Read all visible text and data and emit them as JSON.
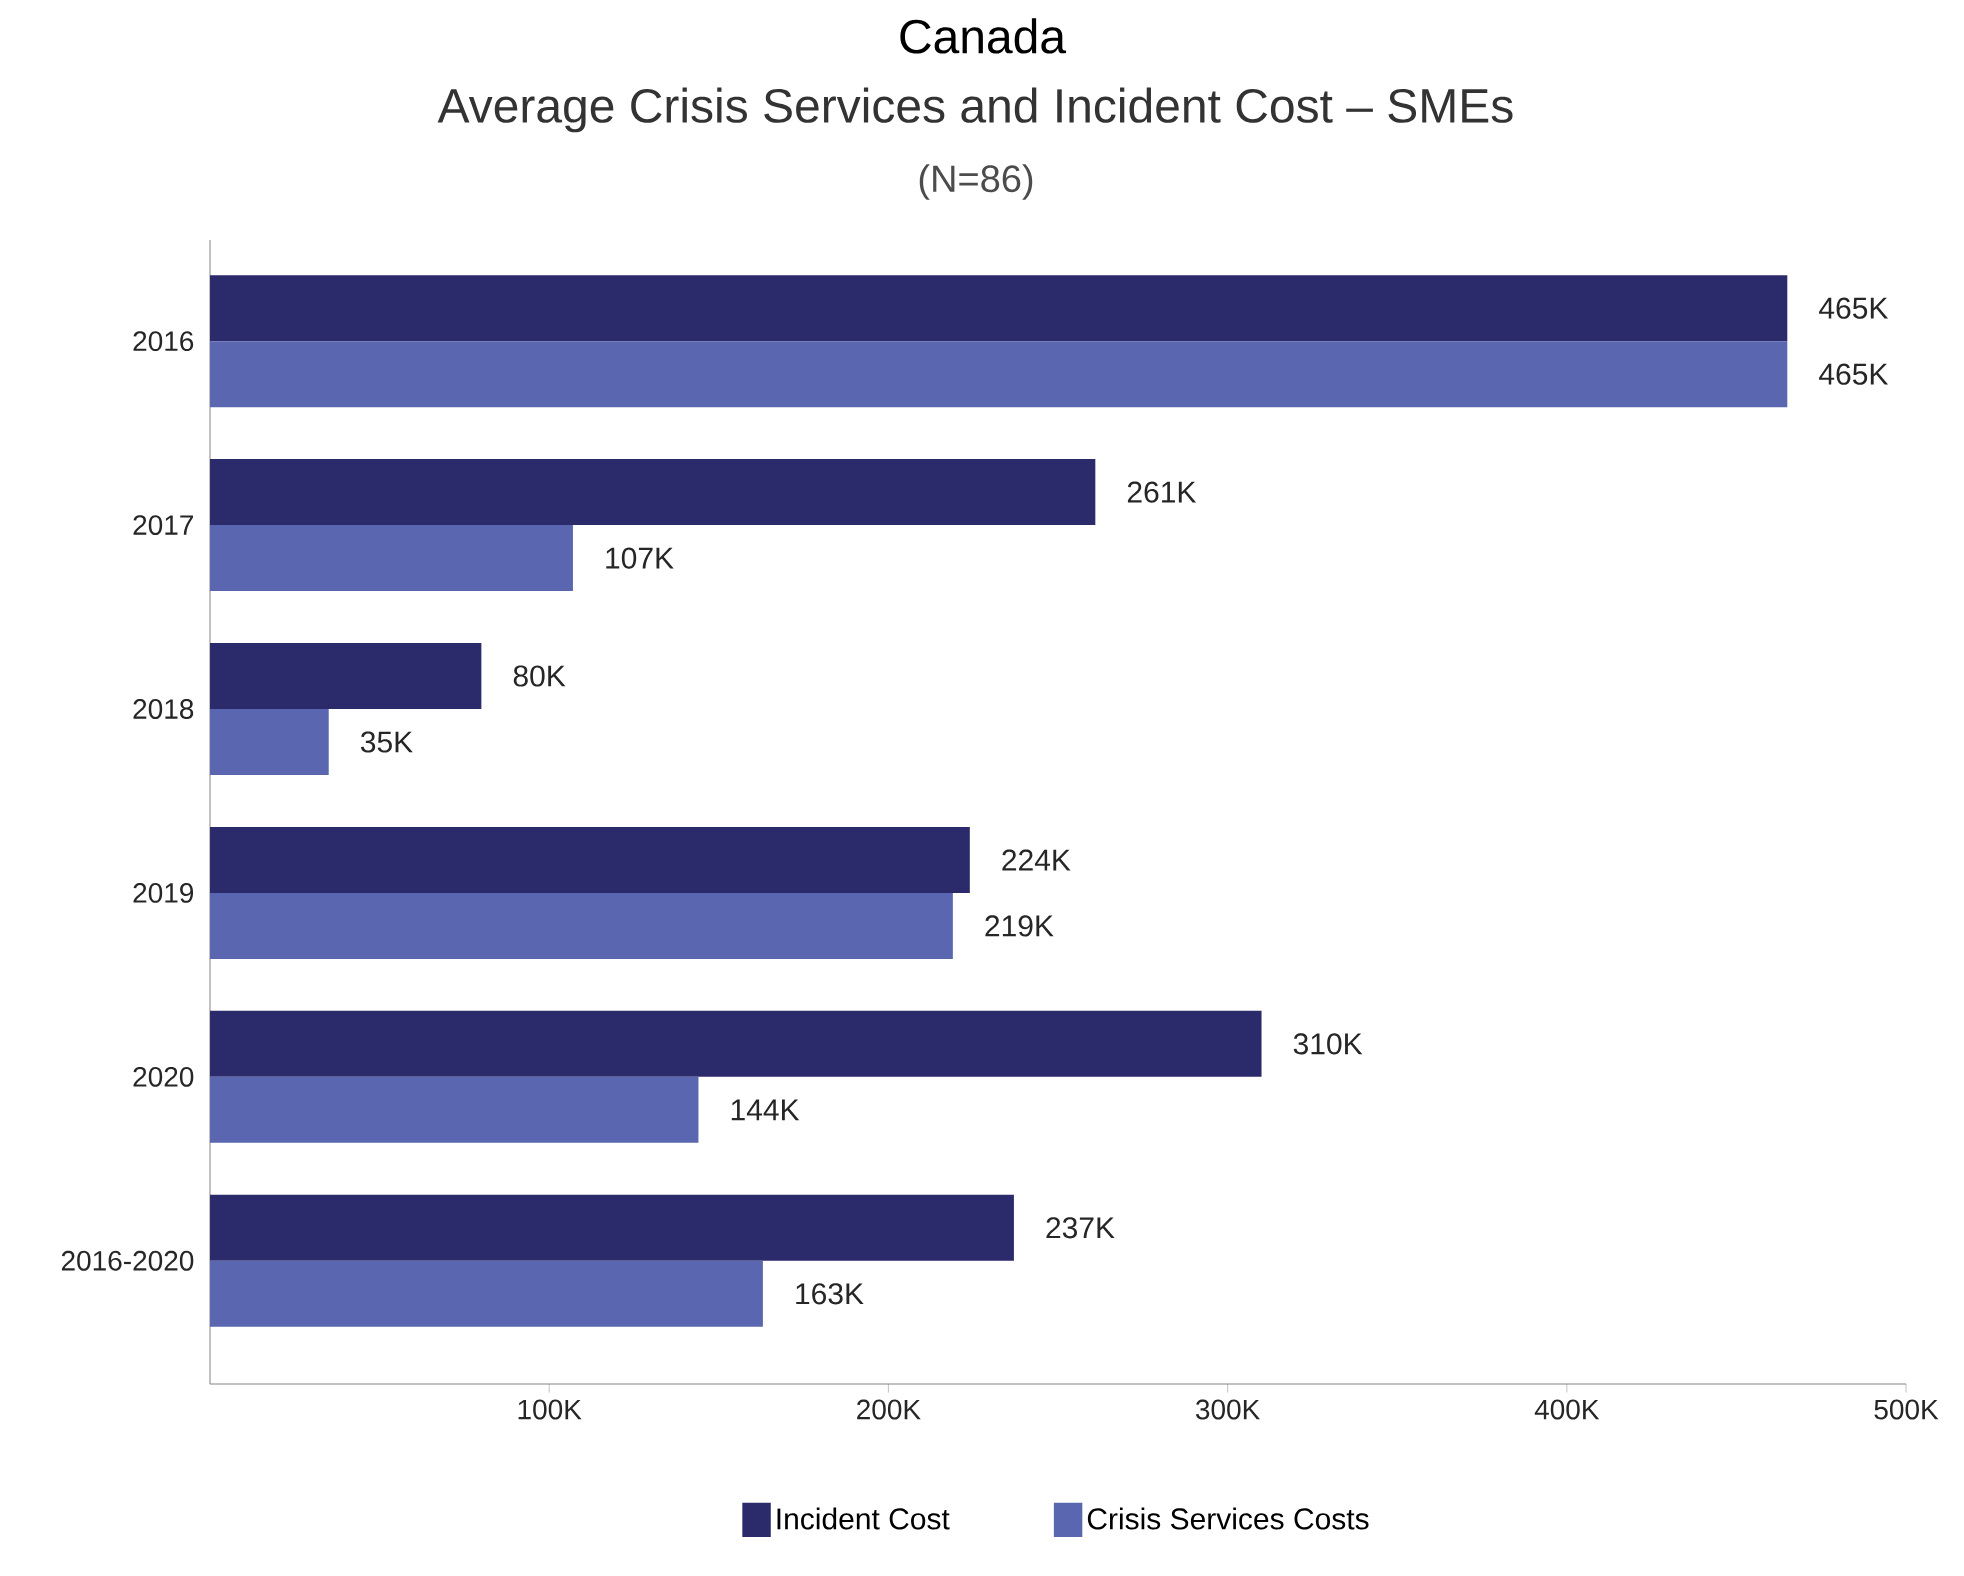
{
  "chart_data": {
    "type": "bar",
    "orientation": "horizontal",
    "title": "Canada",
    "subtitle": "Average Crisis Services and Incident Cost – SMEs",
    "annotations": [
      "(N=86)"
    ],
    "categories": [
      "2016",
      "2017",
      "2018",
      "2019",
      "2020",
      "2016-2020"
    ],
    "series": [
      {
        "name": "Incident Cost",
        "color": "#2b2a6b",
        "values": [
          465,
          261,
          80,
          224,
          310,
          237
        ],
        "value_labels": [
          "465K",
          "261K",
          "80K",
          "224K",
          "310K",
          "237K"
        ]
      },
      {
        "name": "Crisis Services Costs",
        "color": "#5b66b0",
        "values": [
          465,
          107,
          35,
          219,
          144,
          163
        ],
        "value_labels": [
          "465K",
          "107K",
          "35K",
          "219K",
          "144K",
          "163K"
        ]
      }
    ],
    "xlim": [
      0,
      500
    ],
    "xticks": [
      {
        "value": 100,
        "label": "100K"
      },
      {
        "value": 200,
        "label": "200K"
      },
      {
        "value": 300,
        "label": "300K"
      },
      {
        "value": 400,
        "label": "400K"
      },
      {
        "value": 500,
        "label": "500K"
      }
    ],
    "grid": false,
    "legend": "bottom"
  }
}
